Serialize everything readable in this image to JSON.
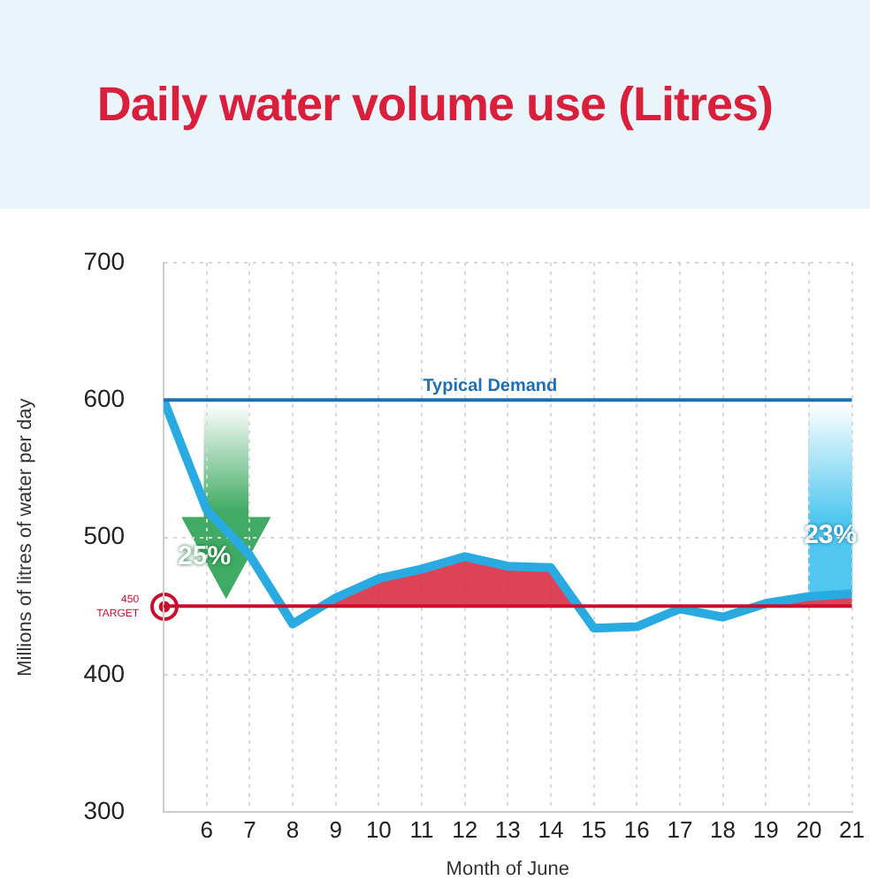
{
  "chart_data": {
    "type": "line",
    "title": "Daily water volume use (Litres)",
    "xlabel": "Month of June",
    "ylabel": "Millions of litres of water per day",
    "x": [
      5,
      6,
      7,
      8,
      9,
      10,
      11,
      12,
      13,
      14,
      15,
      16,
      17,
      18,
      19,
      20,
      21
    ],
    "series": [
      {
        "color": "#29abe2",
        "values": [
          600,
          520,
          487,
          437,
          456,
          470,
          477,
          486,
          479,
          478,
          434,
          435,
          448,
          442,
          452,
          457,
          459
        ]
      },
      {
        "type": "area",
        "color": "#d7263d",
        "x": [
          8.6,
          9,
          10,
          11,
          12,
          13,
          14,
          14.6,
          16,
          18.9,
          19,
          20,
          21
        ],
        "values": [
          450,
          456,
          470,
          477,
          486,
          479,
          478,
          450,
          null,
          450,
          452,
          457,
          459
        ]
      }
    ],
    "xlim": [
      5,
      21
    ],
    "xticks": [
      6,
      7,
      8,
      9,
      10,
      11,
      12,
      13,
      14,
      15,
      16,
      17,
      18,
      19,
      20,
      21
    ],
    "ylim": [
      300,
      700
    ],
    "yticks": [
      300,
      400,
      500,
      600,
      700
    ],
    "ref_lines": [
      {
        "axis": "y",
        "value": 600,
        "label": "Typical Demand",
        "color": "#1f6fb5"
      },
      {
        "axis": "y",
        "value": 450,
        "label": "450 TARGET",
        "color": "#c8102e"
      }
    ],
    "annotations": [
      "25%",
      "23%"
    ],
    "grid": true,
    "legend": false,
    "marker": "none",
    "line_style": "solid"
  }
}
